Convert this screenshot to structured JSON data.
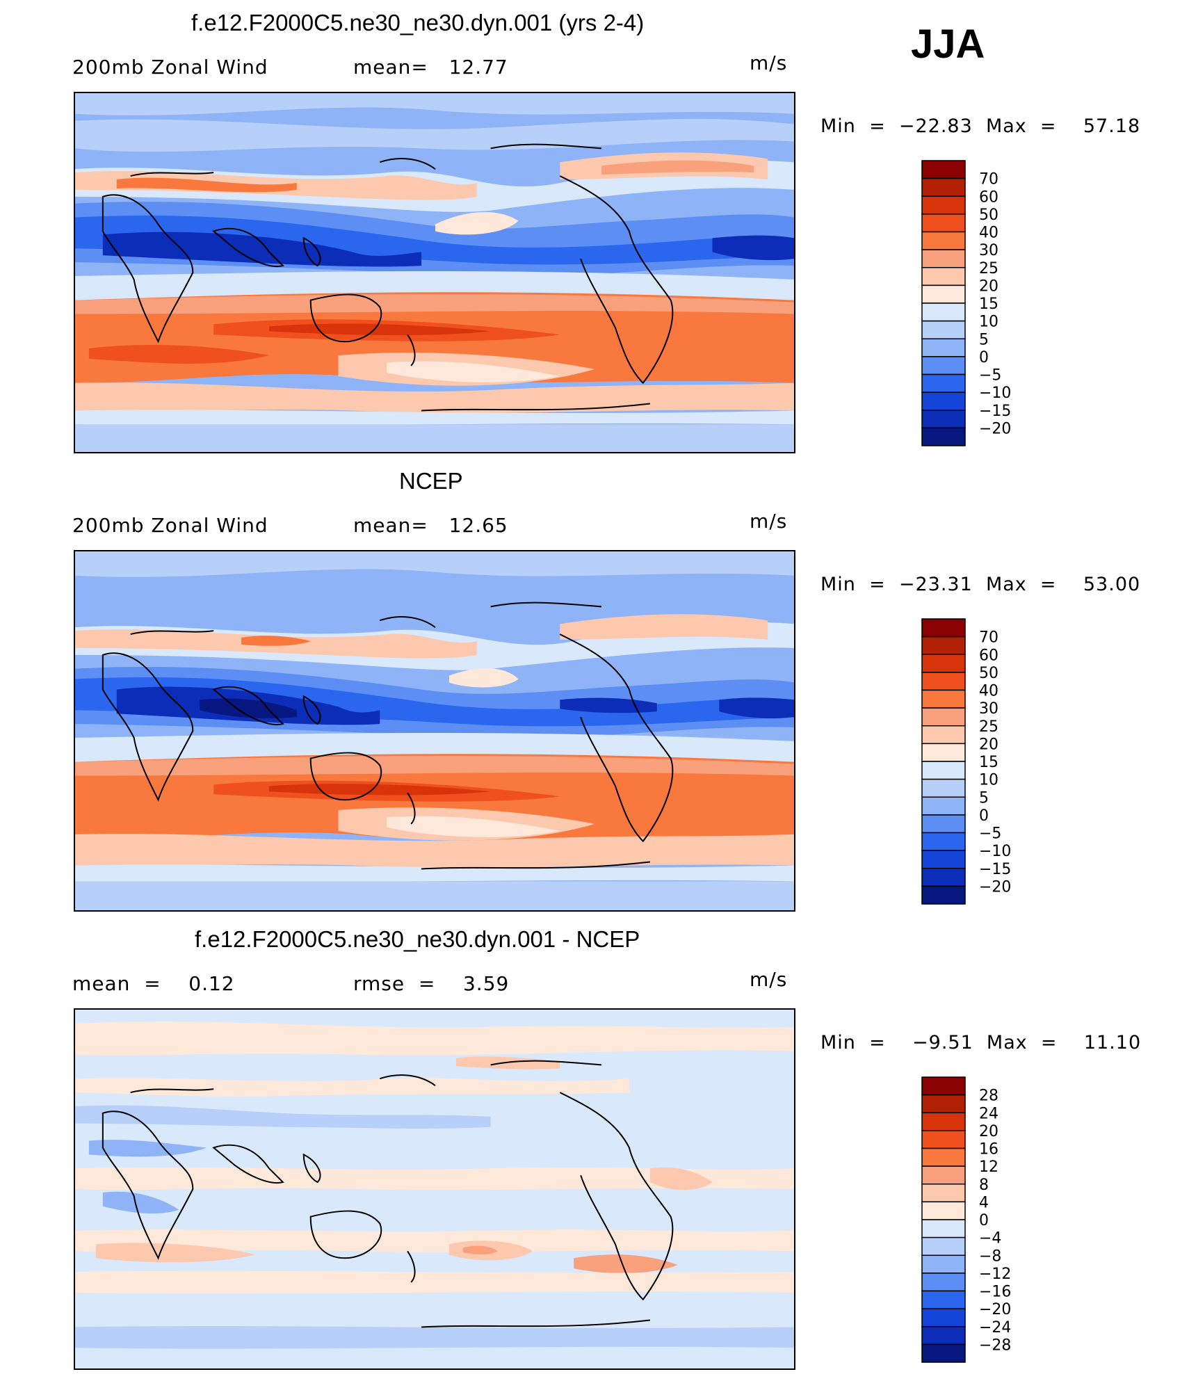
{
  "season": "JJA",
  "panels": [
    {
      "title": "f.e12.F2000C5.ne30_ne30.dyn.001 (yrs 2-4)",
      "left_label": "200mb Zonal Wind",
      "middle_label": "mean=   12.77",
      "units": "m/s",
      "min_max": "Min  =  −22.83  Max  =    57.18",
      "colorbar_labels": [
        "70",
        "60",
        "50",
        "40",
        "30",
        "25",
        "20",
        "15",
        "10",
        "5",
        "0",
        "−5",
        "−10",
        "−15",
        "−20"
      ],
      "colorbar_colors": [
        "#8b0000",
        "#b22106",
        "#d8340c",
        "#f0501e",
        "#f8783e",
        "#f9a07c",
        "#fcc8ae",
        "#fde8d9",
        "#d9e8fb",
        "#b7d0fa",
        "#8fb3f7",
        "#5c8ef4",
        "#2b67ee",
        "#1444d9",
        "#0c2db8",
        "#06187f"
      ]
    },
    {
      "title": "NCEP",
      "left_label": "200mb Zonal Wind",
      "middle_label": "mean=   12.65",
      "units": "m/s",
      "min_max": "Min  =  −23.31  Max  =    53.00",
      "colorbar_labels": [
        "70",
        "60",
        "50",
        "40",
        "30",
        "25",
        "20",
        "15",
        "10",
        "5",
        "0",
        "−5",
        "−10",
        "−15",
        "−20"
      ],
      "colorbar_colors": [
        "#8b0000",
        "#b22106",
        "#d8340c",
        "#f0501e",
        "#f8783e",
        "#f9a07c",
        "#fcc8ae",
        "#fde8d9",
        "#d9e8fb",
        "#b7d0fa",
        "#8fb3f7",
        "#5c8ef4",
        "#2b67ee",
        "#1444d9",
        "#0c2db8",
        "#06187f"
      ]
    },
    {
      "title": "f.e12.F2000C5.ne30_ne30.dyn.001 - NCEP",
      "left_label": "mean  =    0.12",
      "middle_label": "rmse  =    3.59",
      "units": "m/s",
      "min_max": "Min  =    −9.51  Max  =    11.10",
      "colorbar_labels": [
        "28",
        "24",
        "20",
        "16",
        "12",
        "8",
        "4",
        "0",
        "−4",
        "−8",
        "−12",
        "−16",
        "−20",
        "−24",
        "−28"
      ],
      "colorbar_colors": [
        "#8b0000",
        "#b22106",
        "#d8340c",
        "#f0501e",
        "#f8783e",
        "#f9a07c",
        "#fcc8ae",
        "#fde8d9",
        "#d9e8fb",
        "#b7d0fa",
        "#8fb3f7",
        "#5c8ef4",
        "#2b67ee",
        "#1444d9",
        "#0c2db8",
        "#06187f"
      ]
    }
  ],
  "map_palette": {
    "deep_blue": "#0c2db8",
    "blue": "#2b67ee",
    "mid_blue": "#5c8ef4",
    "light_blue": "#8fb3f7",
    "pale_blue": "#b7d0fa",
    "very_pale_blue": "#d9e8fb",
    "pale_orange": "#fde8d9",
    "light_orange": "#fcc8ae",
    "salmon": "#f9a07c",
    "orange": "#f8783e",
    "deep_orange": "#f0501e",
    "red": "#d8340c"
  }
}
